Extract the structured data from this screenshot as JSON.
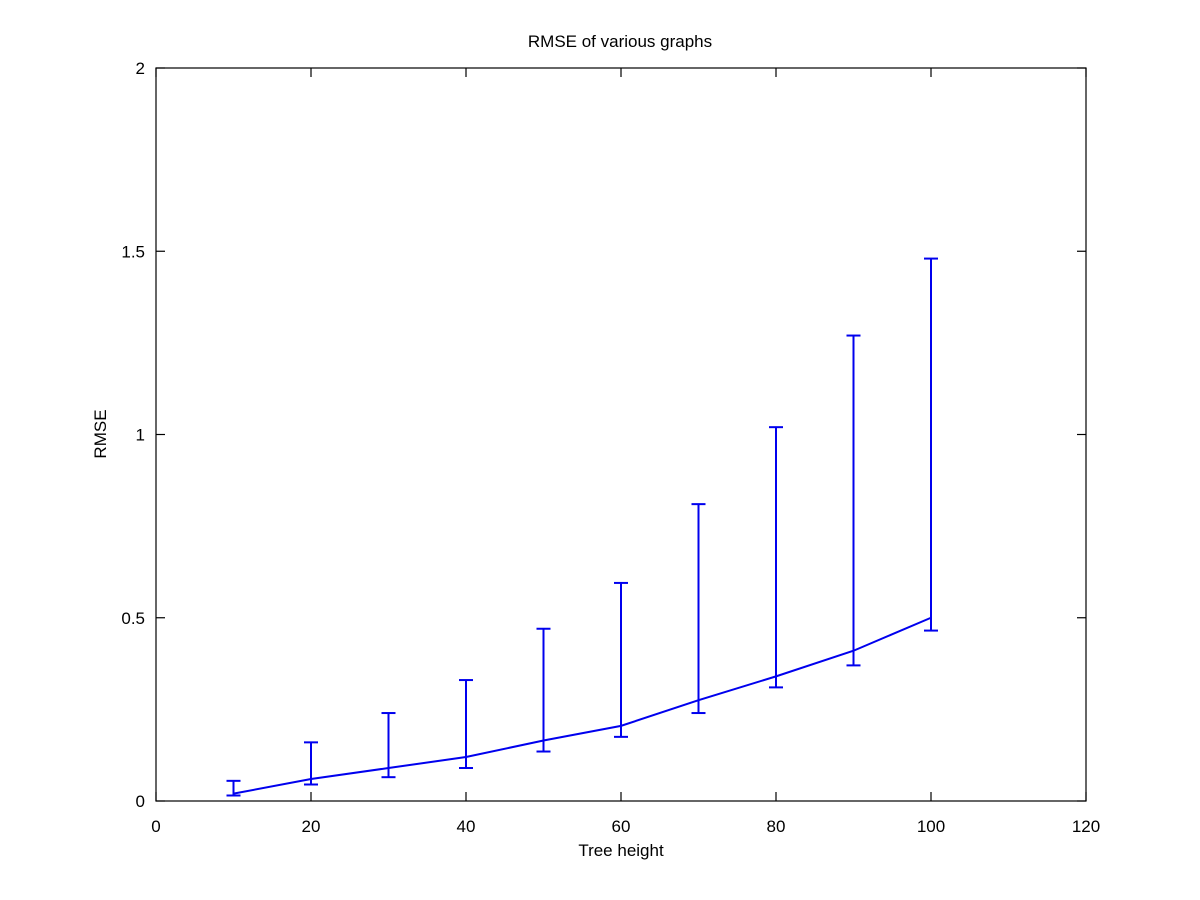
{
  "chart_data": {
    "type": "line",
    "title": "RMSE of various graphs",
    "xlabel": "Tree height",
    "ylabel": "RMSE",
    "xlim": [
      0,
      120
    ],
    "ylim": [
      0,
      2
    ],
    "x_ticks": [
      0,
      20,
      40,
      60,
      80,
      100,
      120
    ],
    "y_ticks": [
      0,
      0.5,
      1,
      1.5,
      2
    ],
    "x_tick_labels": [
      "0",
      "20",
      "40",
      "60",
      "80",
      "100",
      "120"
    ],
    "y_tick_labels": [
      "0",
      "0.5",
      "1",
      "1.5",
      "2"
    ],
    "grid": false,
    "color": "#0000ee",
    "series": [
      {
        "x": [
          10,
          20,
          30,
          40,
          50,
          60,
          70,
          80,
          90,
          100
        ],
        "y": [
          0.02,
          0.06,
          0.09,
          0.12,
          0.165,
          0.205,
          0.275,
          0.34,
          0.41,
          0.5
        ],
        "err_low": [
          0.015,
          0.045,
          0.065,
          0.09,
          0.135,
          0.175,
          0.24,
          0.31,
          0.37,
          0.465
        ],
        "err_high": [
          0.055,
          0.16,
          0.24,
          0.33,
          0.47,
          0.595,
          0.81,
          1.02,
          1.27,
          1.48
        ]
      }
    ]
  }
}
